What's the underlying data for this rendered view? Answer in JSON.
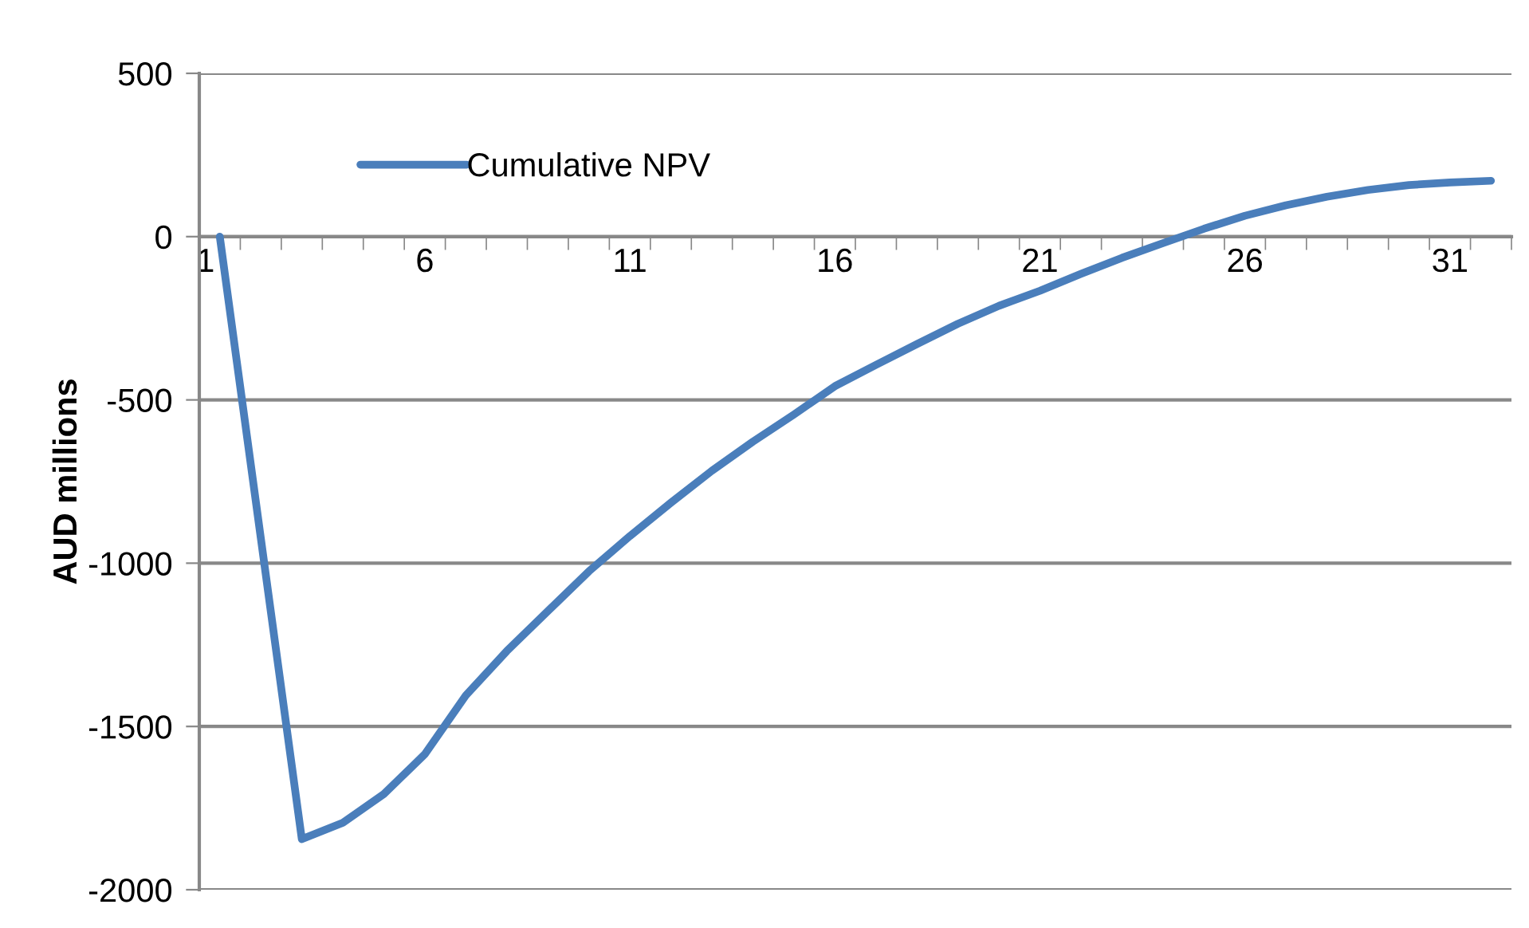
{
  "chart_data": {
    "type": "line",
    "ylabel": "AUD millions",
    "categories": [
      "1",
      null,
      null,
      null,
      null,
      "6",
      null,
      null,
      null,
      null,
      "11",
      null,
      null,
      null,
      null,
      "16",
      null,
      null,
      null,
      null,
      "21",
      null,
      null,
      null,
      null,
      "26",
      null,
      null,
      null,
      null,
      "31",
      null
    ],
    "series": [
      {
        "name": "Cumulative NPV",
        "color": "#4a7ebb",
        "values": [
          0,
          -923,
          -1845,
          -1795,
          -1707,
          -1585,
          -1405,
          -1269,
          -1147,
          -1025,
          -917,
          -815,
          -717,
          -628,
          -545,
          -458,
          -393,
          -329,
          -267,
          -212,
          -166,
          -114,
          -65,
          -20,
          24,
          64,
          96,
          122,
          143,
          158,
          166,
          171
        ]
      }
    ],
    "ylim": [
      -2000,
      500
    ],
    "yticks": [
      -2000,
      -1500,
      -1000,
      -500,
      0,
      500
    ],
    "grid": "y",
    "legend": "top left",
    "marker": "none",
    "line_style": "solid"
  }
}
